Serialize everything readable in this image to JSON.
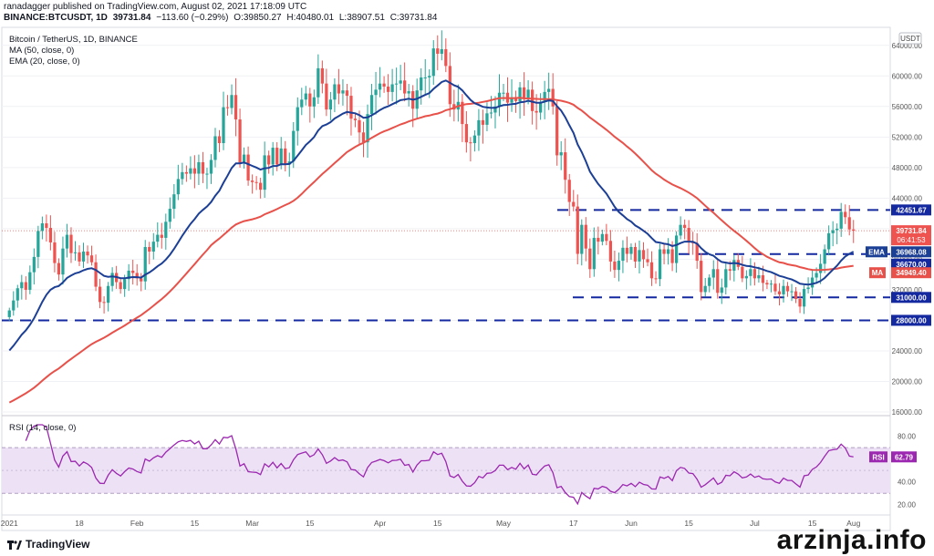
{
  "header": {
    "publisher_line": "ranadagger published on TradingView.com, August 02, 2021 17:18:09 UTC",
    "symbol": "BINANCE:BTCUSDT, 1D",
    "last": "39731.84",
    "change": "−113.60 (−0.29%)",
    "open_label": "O:",
    "open": "39850.27",
    "high_label": "H:",
    "high": "40480.01",
    "low_label": "L:",
    "low": "38907.51",
    "close_label": "C:",
    "close": "39731.84"
  },
  "legend": {
    "pair": "Bitcoin / TetherUS, 1D, BINANCE",
    "ma": "MA (50, close, 0)",
    "ema": "EMA (20, close, 0)",
    "rsi": "RSI (14, close, 0)"
  },
  "colors": {
    "up": "#26a69a",
    "down": "#ef5350",
    "ma": "#e8514a",
    "ema": "#1c3f96",
    "level": "#1428a0",
    "rsi": "#9c27b0",
    "rsi_band": "#ede1f5"
  },
  "axis": {
    "currency": "USDT",
    "price_ticks": [
      "64000.00",
      "60000.00",
      "56000.00",
      "52000.00",
      "48000.00",
      "44000.00",
      "40000.00",
      "36000.00",
      "32000.00",
      "28000.00",
      "24000.00",
      "20000.00",
      "16000.00"
    ],
    "rsi_ticks": [
      "80.00",
      "60.00",
      "40.00",
      "20.00"
    ],
    "time_ticks": [
      "2021",
      "18",
      "Feb",
      "15",
      "Mar",
      "15",
      "Apr",
      "15",
      "May",
      "17",
      "Jun",
      "15",
      "Jul",
      "15",
      "Aug"
    ]
  },
  "labels": {
    "level_top": "42451.67",
    "price": "39731.84",
    "countdown": "06:41:53",
    "ema_tag": "EMA",
    "ema_val": "36968.08",
    "level_mid": "36670.00",
    "ma_tag": "MA",
    "ma_val": "34949.40",
    "level_31": "31000.00",
    "level_28": "28000.00",
    "rsi_tag": "RSI",
    "rsi_val": "62.79"
  },
  "brand": "TradingView",
  "watermark": "arzinja.info",
  "chart_data": {
    "type": "candlestick",
    "ylim": [
      16000,
      66000
    ],
    "levels": [
      42451.67,
      36670,
      31000,
      28000
    ],
    "series": [
      {
        "name": "EMA (20, close, 0)",
        "last": 36968.08
      },
      {
        "name": "MA (50, close, 0)",
        "last": 34949.4
      },
      {
        "name": "RSI (14, close, 0)",
        "last": 62.79
      }
    ],
    "closes": [
      29300,
      30600,
      32200,
      33000,
      32000,
      34300,
      36300,
      39700,
      40700,
      40100,
      38200,
      35500,
      34000,
      37400,
      39200,
      36800,
      36900,
      35700,
      37000,
      36500,
      35600,
      32400,
      30400,
      30300,
      32500,
      34200,
      33000,
      32100,
      33400,
      34500,
      34200,
      33500,
      33100,
      37600,
      37000,
      38300,
      39200,
      38800,
      40900,
      42600,
      44500,
      46500,
      47400,
      47200,
      47900,
      47200,
      48700,
      47200,
      47200,
      49000,
      52100,
      51200,
      55900,
      55800,
      57500,
      54300,
      48600,
      49700,
      46300,
      46100,
      46000,
      45100,
      49600,
      48400,
      50600,
      48400,
      50500,
      48400,
      48800,
      52800,
      55900,
      56900,
      57700,
      56000,
      57200,
      61000,
      59000,
      55600,
      56900,
      58900,
      57700,
      58100,
      57400,
      54400,
      54200,
      52600,
      51300,
      55000,
      57500,
      58200,
      59000,
      58600,
      57900,
      58900,
      59000,
      59400,
      57700,
      58000,
      55700,
      58100,
      59800,
      59800,
      60000,
      63600,
      62900,
      63500,
      61300,
      56300,
      55600,
      56600,
      53700,
      51300,
      51200,
      52200,
      54200,
      53600,
      55100,
      55200,
      56000,
      57800,
      57800,
      56500,
      57200,
      56700,
      58500,
      57000,
      58200,
      55400,
      55200,
      56600,
      57900,
      58300,
      56000,
      49600,
      50000,
      46400,
      43500,
      42900,
      36700,
      40500,
      37400,
      34700,
      38800,
      38300,
      39300,
      38400,
      35700,
      34600,
      35800,
      37500,
      36700,
      37600,
      35700,
      37200,
      36000,
      35600,
      33500,
      33400,
      37300,
      36700,
      37300,
      35500,
      39100,
      40500,
      40100,
      38300,
      38100,
      35800,
      31700,
      32500,
      33600,
      34700,
      31600,
      32300,
      34700,
      34500,
      35900,
      35000,
      33500,
      33800,
      34700,
      33500,
      33900,
      32900,
      32700,
      32800,
      31800,
      31400,
      32500,
      31800,
      31800,
      30800,
      29800,
      32100,
      32300,
      33600,
      34200,
      35400,
      37300,
      39400,
      39800,
      40000,
      42200,
      41500,
      39900,
      39731
    ]
  }
}
